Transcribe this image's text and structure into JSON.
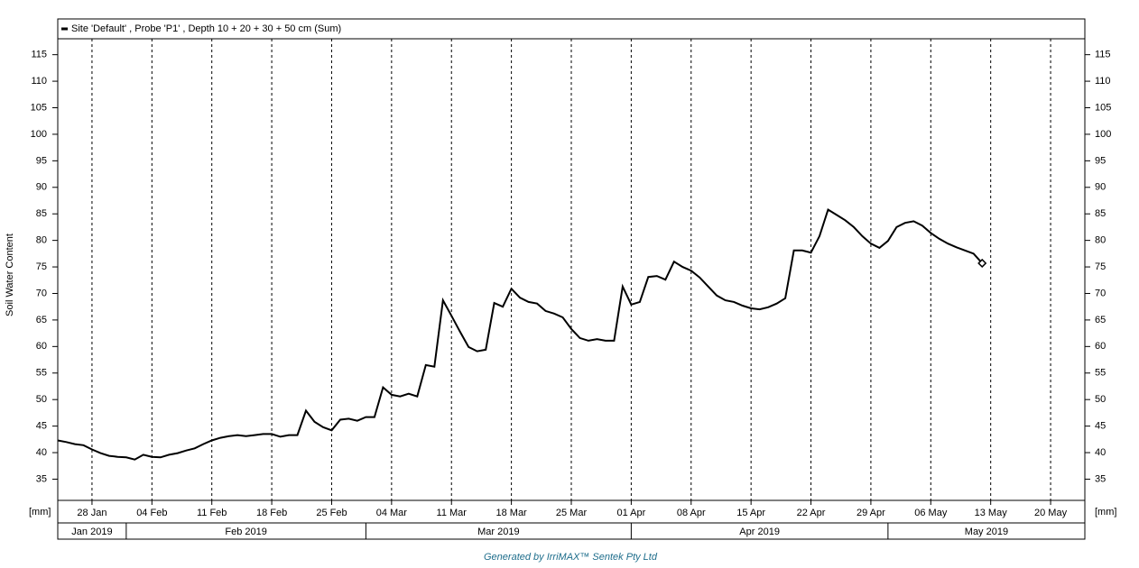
{
  "chart_data": {
    "type": "line",
    "y_label": "Soil Water Content",
    "unit_label": "[mm]",
    "footer": "Generated by IrriMAX™ Sentek Pty Ltd",
    "x": [
      "2019-01-24",
      "2019-01-25",
      "2019-01-26",
      "2019-01-27",
      "2019-01-28",
      "2019-01-29",
      "2019-01-30",
      "2019-01-31",
      "2019-02-01",
      "2019-02-02",
      "2019-02-03",
      "2019-02-04",
      "2019-02-05",
      "2019-02-06",
      "2019-02-07",
      "2019-02-08",
      "2019-02-09",
      "2019-02-10",
      "2019-02-11",
      "2019-02-12",
      "2019-02-13",
      "2019-02-14",
      "2019-02-15",
      "2019-02-16",
      "2019-02-17",
      "2019-02-18",
      "2019-02-19",
      "2019-02-20",
      "2019-02-21",
      "2019-02-22",
      "2019-02-23",
      "2019-02-24",
      "2019-02-25",
      "2019-02-26",
      "2019-02-27",
      "2019-02-28",
      "2019-03-01",
      "2019-03-02",
      "2019-03-03",
      "2019-03-04",
      "2019-03-05",
      "2019-03-06",
      "2019-03-07",
      "2019-03-08",
      "2019-03-09",
      "2019-03-10",
      "2019-03-11",
      "2019-03-12",
      "2019-03-13",
      "2019-03-14",
      "2019-03-15",
      "2019-03-16",
      "2019-03-17",
      "2019-03-18",
      "2019-03-19",
      "2019-03-20",
      "2019-03-21",
      "2019-03-22",
      "2019-03-23",
      "2019-03-24",
      "2019-03-25",
      "2019-03-26",
      "2019-03-27",
      "2019-03-28",
      "2019-03-29",
      "2019-03-30",
      "2019-03-31",
      "2019-04-01",
      "2019-04-02",
      "2019-04-03",
      "2019-04-04",
      "2019-04-05",
      "2019-04-06",
      "2019-04-07",
      "2019-04-08",
      "2019-04-09",
      "2019-04-10",
      "2019-04-11",
      "2019-04-12",
      "2019-04-13",
      "2019-04-14",
      "2019-04-15",
      "2019-04-16",
      "2019-04-17",
      "2019-04-18",
      "2019-04-19",
      "2019-04-20",
      "2019-04-21",
      "2019-04-22",
      "2019-04-23",
      "2019-04-24",
      "2019-04-25",
      "2019-04-26",
      "2019-04-27",
      "2019-04-28",
      "2019-04-29",
      "2019-04-30",
      "2019-05-01",
      "2019-05-02",
      "2019-05-03",
      "2019-05-04",
      "2019-05-05",
      "2019-05-06",
      "2019-05-07",
      "2019-05-08",
      "2019-05-09",
      "2019-05-10",
      "2019-05-11",
      "2019-05-12"
    ],
    "series": [
      {
        "name": "Site 'Default' , Probe 'P1' , Depth 10 + 20 + 30 + 50 cm (Sum)",
        "color": "#000000",
        "values": [
          42.3,
          42.0,
          41.6,
          41.4,
          40.6,
          39.9,
          39.4,
          39.2,
          39.1,
          38.7,
          39.6,
          39.2,
          39.1,
          39.6,
          39.9,
          40.4,
          40.8,
          41.6,
          42.3,
          42.8,
          43.1,
          43.3,
          43.1,
          43.3,
          43.5,
          43.5,
          43.0,
          43.3,
          43.3,
          47.9,
          45.8,
          44.8,
          44.2,
          46.2,
          46.4,
          46.0,
          46.7,
          46.7,
          52.3,
          50.9,
          50.6,
          51.1,
          50.6,
          56.5,
          56.2,
          68.7,
          65.8,
          62.8,
          59.9,
          59.1,
          59.4,
          68.2,
          67.5,
          70.9,
          69.2,
          68.4,
          68.1,
          66.7,
          66.2,
          65.5,
          63.3,
          61.6,
          61.1,
          61.4,
          61.1,
          61.1,
          71.3,
          67.9,
          68.4,
          73.1,
          73.3,
          72.6,
          76.0,
          75.0,
          74.3,
          73.0,
          71.3,
          69.6,
          68.7,
          68.4,
          67.7,
          67.2,
          67.0,
          67.4,
          68.1,
          69.1,
          78.1,
          78.1,
          77.7,
          80.8,
          85.8,
          84.8,
          83.8,
          82.5,
          80.8,
          79.4,
          78.6,
          79.9,
          82.5,
          83.3,
          83.6,
          82.8,
          81.4,
          80.3,
          79.4,
          78.7,
          78.1,
          77.5,
          75.7
        ]
      }
    ],
    "xlim": [
      "2019-01-24",
      "2019-05-24"
    ],
    "xticks": [
      {
        "value": "2019-01-28",
        "label": "28 Jan"
      },
      {
        "value": "2019-02-04",
        "label": "04 Feb"
      },
      {
        "value": "2019-02-11",
        "label": "11 Feb"
      },
      {
        "value": "2019-02-18",
        "label": "18 Feb"
      },
      {
        "value": "2019-02-25",
        "label": "25 Feb"
      },
      {
        "value": "2019-03-04",
        "label": "04 Mar"
      },
      {
        "value": "2019-03-11",
        "label": "11 Mar"
      },
      {
        "value": "2019-03-18",
        "label": "18 Mar"
      },
      {
        "value": "2019-03-25",
        "label": "25 Mar"
      },
      {
        "value": "2019-04-01",
        "label": "01 Apr"
      },
      {
        "value": "2019-04-08",
        "label": "08 Apr"
      },
      {
        "value": "2019-04-15",
        "label": "15 Apr"
      },
      {
        "value": "2019-04-22",
        "label": "22 Apr"
      },
      {
        "value": "2019-04-29",
        "label": "29 Apr"
      },
      {
        "value": "2019-05-06",
        "label": "06 May"
      },
      {
        "value": "2019-05-13",
        "label": "13 May"
      },
      {
        "value": "2019-05-20",
        "label": "20 May"
      }
    ],
    "month_ticks": [
      {
        "value": "2019-01-01",
        "label": "Jan 2019"
      },
      {
        "value": "2019-02-01",
        "label": "Feb 2019"
      },
      {
        "value": "2019-03-01",
        "label": "Mar 2019"
      },
      {
        "value": "2019-04-01",
        "label": "Apr 2019"
      },
      {
        "value": "2019-05-01",
        "label": "May 2019"
      }
    ],
    "ylim": [
      31,
      118
    ],
    "yticks": [
      35,
      40,
      45,
      50,
      55,
      60,
      65,
      70,
      75,
      80,
      85,
      90,
      95,
      100,
      105,
      110,
      115
    ],
    "grid": "x-dashed"
  }
}
